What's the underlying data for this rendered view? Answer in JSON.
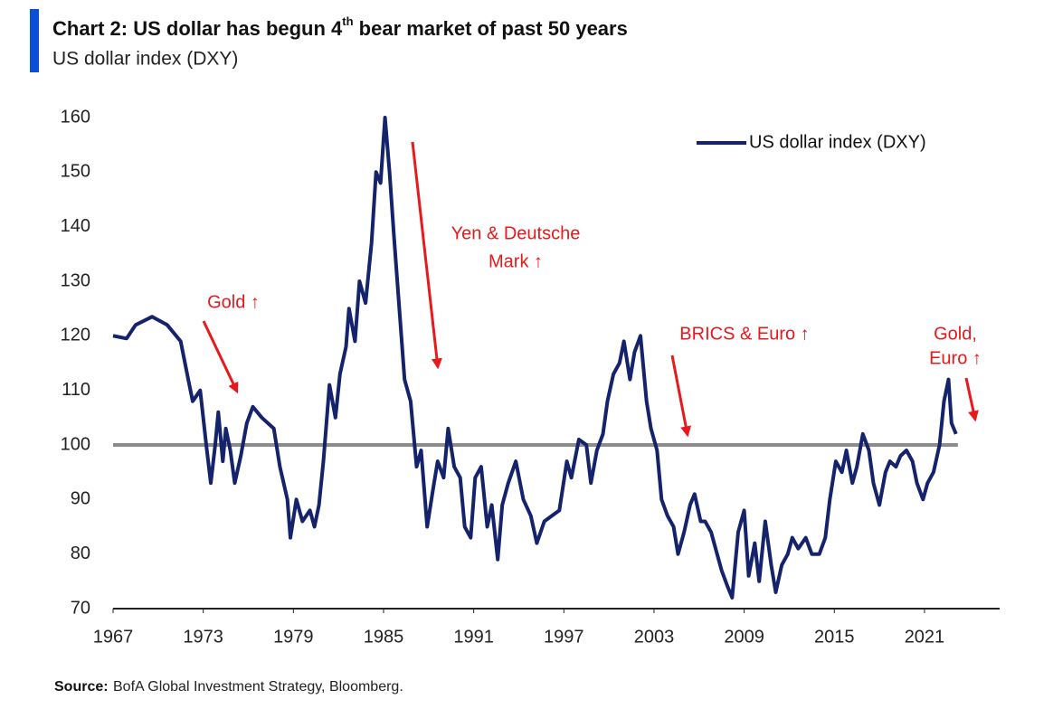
{
  "chart_data": {
    "type": "line",
    "title": {
      "before": "Chart 2: US dollar has begun 4",
      "sup": "th",
      "after": " bear market of past 50 years"
    },
    "subtitle": "US dollar index (DXY)",
    "source_label": "Source:",
    "source": "BofA Global Investment Strategy, Bloomberg.",
    "xlim": [
      1967,
      2026
    ],
    "xticks": [
      1967,
      1973,
      1979,
      1985,
      1991,
      1997,
      2003,
      2009,
      2015,
      2021
    ],
    "ylim": [
      70,
      160
    ],
    "yticks": [
      70,
      80,
      90,
      100,
      110,
      120,
      130,
      140,
      150,
      160
    ],
    "reference_line": 100,
    "reference_color": "#8c8c8c",
    "legend": "upper right",
    "annotation_color": "#e8191c",
    "annotations": [
      {
        "lines": [
          "Gold ↑"
        ]
      },
      {
        "lines": [
          "Yen & Deutsche",
          "Mark ↑"
        ]
      },
      {
        "lines": [
          "BRICS & Euro ↑"
        ]
      },
      {
        "lines": [
          "Gold,",
          "Euro ↑"
        ]
      }
    ],
    "x": [
      1967.0,
      1967.9,
      1968.5,
      1969.6,
      1970.6,
      1971.5,
      1972.0,
      1972.3,
      1972.8,
      1973.2,
      1973.5,
      1973.8,
      1974.0,
      1974.3,
      1974.5,
      1974.8,
      1975.1,
      1975.5,
      1975.9,
      1976.3,
      1976.9,
      1977.7,
      1978.1,
      1978.6,
      1978.8,
      1979.2,
      1979.6,
      1980.1,
      1980.4,
      1980.7,
      1981.0,
      1981.4,
      1981.8,
      1982.1,
      1982.5,
      1982.7,
      1983.1,
      1983.4,
      1983.8,
      1984.2,
      1984.5,
      1984.8,
      1985.1,
      1985.4,
      1985.7,
      1986.1,
      1986.4,
      1986.8,
      1987.2,
      1987.5,
      1987.9,
      1988.3,
      1988.6,
      1989.0,
      1989.3,
      1989.7,
      1990.1,
      1990.4,
      1990.8,
      1991.1,
      1991.5,
      1991.9,
      1992.2,
      1992.6,
      1992.9,
      1993.3,
      1993.8,
      1994.3,
      1994.8,
      1995.2,
      1995.7,
      1996.2,
      1996.7,
      1997.2,
      1997.5,
      1998.0,
      1998.5,
      1998.8,
      1999.2,
      1999.6,
      1999.9,
      2000.3,
      2000.7,
      2001.0,
      2001.4,
      2001.7,
      2002.1,
      2002.5,
      2002.8,
      2003.2,
      2003.5,
      2003.9,
      2004.3,
      2004.6,
      2005.0,
      2005.4,
      2005.7,
      2006.1,
      2006.4,
      2006.8,
      2007.2,
      2007.5,
      2007.9,
      2008.2,
      2008.6,
      2009.0,
      2009.3,
      2009.7,
      2010.0,
      2010.4,
      2010.8,
      2011.1,
      2011.5,
      2011.9,
      2012.2,
      2012.6,
      2013.1,
      2013.5,
      2014.0,
      2014.4,
      2014.7,
      2015.1,
      2015.5,
      2015.8,
      2016.2,
      2016.5,
      2016.9,
      2017.3,
      2017.6,
      2018.0,
      2018.4,
      2018.7,
      2019.1,
      2019.4,
      2019.8,
      2020.2,
      2020.5,
      2020.9,
      2021.2,
      2021.6,
      2022.0,
      2022.3,
      2022.6,
      2022.8,
      2023.1
    ],
    "series": [
      {
        "name": "US dollar index (DXY)",
        "color": "#14236b",
        "values": [
          120,
          119.5,
          122,
          123.5,
          122,
          119,
          112,
          108,
          110,
          100,
          93,
          100,
          106,
          97,
          103,
          99,
          93,
          98,
          104,
          107,
          105,
          103,
          96,
          90,
          83,
          90,
          86,
          88,
          85,
          89,
          97,
          111,
          105,
          113,
          118,
          125,
          119,
          130,
          126,
          137,
          150,
          148,
          160,
          150,
          138,
          123,
          112,
          108,
          96,
          99,
          85,
          92,
          97,
          94,
          103,
          96,
          94,
          85,
          83,
          94,
          96,
          85,
          89,
          79,
          89,
          93,
          97,
          90,
          87,
          82,
          86,
          87,
          88,
          97,
          94,
          101,
          100,
          93,
          99,
          102,
          108,
          113,
          115,
          119,
          112,
          117,
          120,
          108,
          103,
          99,
          90,
          87,
          85,
          80,
          84,
          89,
          91,
          86,
          86,
          84,
          80,
          77,
          74,
          72,
          84,
          88,
          76,
          82,
          75,
          86,
          78,
          73,
          78,
          80,
          83,
          81,
          83,
          80,
          80,
          83,
          90,
          97,
          95,
          99,
          93,
          96,
          102,
          99,
          93,
          89,
          95,
          97,
          96,
          98,
          99,
          97,
          93,
          90,
          93,
          95,
          100,
          108,
          112,
          104,
          102
        ]
      }
    ]
  }
}
